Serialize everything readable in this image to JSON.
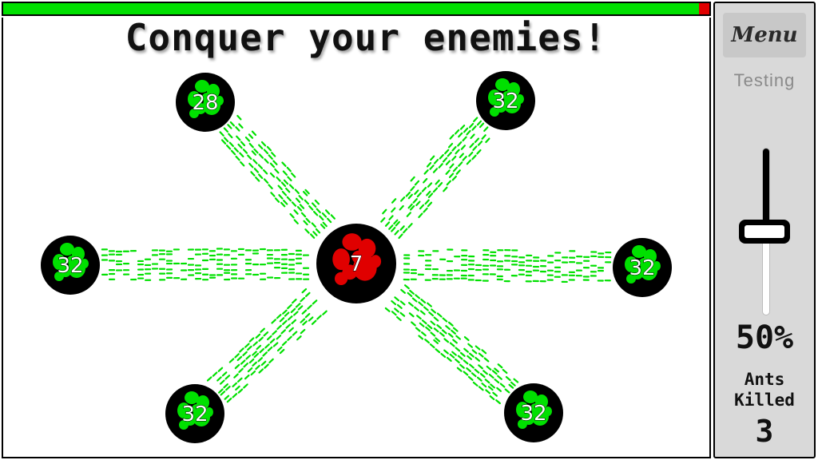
{
  "hud": {
    "player_strength_fraction": 0.985,
    "colors": {
      "player": "#00e000",
      "enemy": "#e00000"
    }
  },
  "headline": "Conquer your enemies!",
  "sidebar": {
    "menu_label": "Menu",
    "status_label": "Testing",
    "send_slider": {
      "value_percent": 50
    },
    "percent_label": "50%",
    "kills_label_line1": "Ants",
    "kills_label_line2": "Killed",
    "kills_value": "3"
  },
  "colonies": [
    {
      "id": "colony-center",
      "owner": "enemy",
      "count": "7"
    },
    {
      "id": "colony-top-left",
      "owner": "player",
      "count": "28"
    },
    {
      "id": "colony-top-right",
      "owner": "player",
      "count": "32"
    },
    {
      "id": "colony-left",
      "owner": "player",
      "count": "32"
    },
    {
      "id": "colony-right",
      "owner": "player",
      "count": "32"
    },
    {
      "id": "colony-bottom-left",
      "owner": "player",
      "count": "32"
    },
    {
      "id": "colony-bottom-right",
      "owner": "player",
      "count": "32"
    }
  ],
  "icons": {
    "colony": "ant-colony-icon",
    "ant": "ant-icon"
  }
}
